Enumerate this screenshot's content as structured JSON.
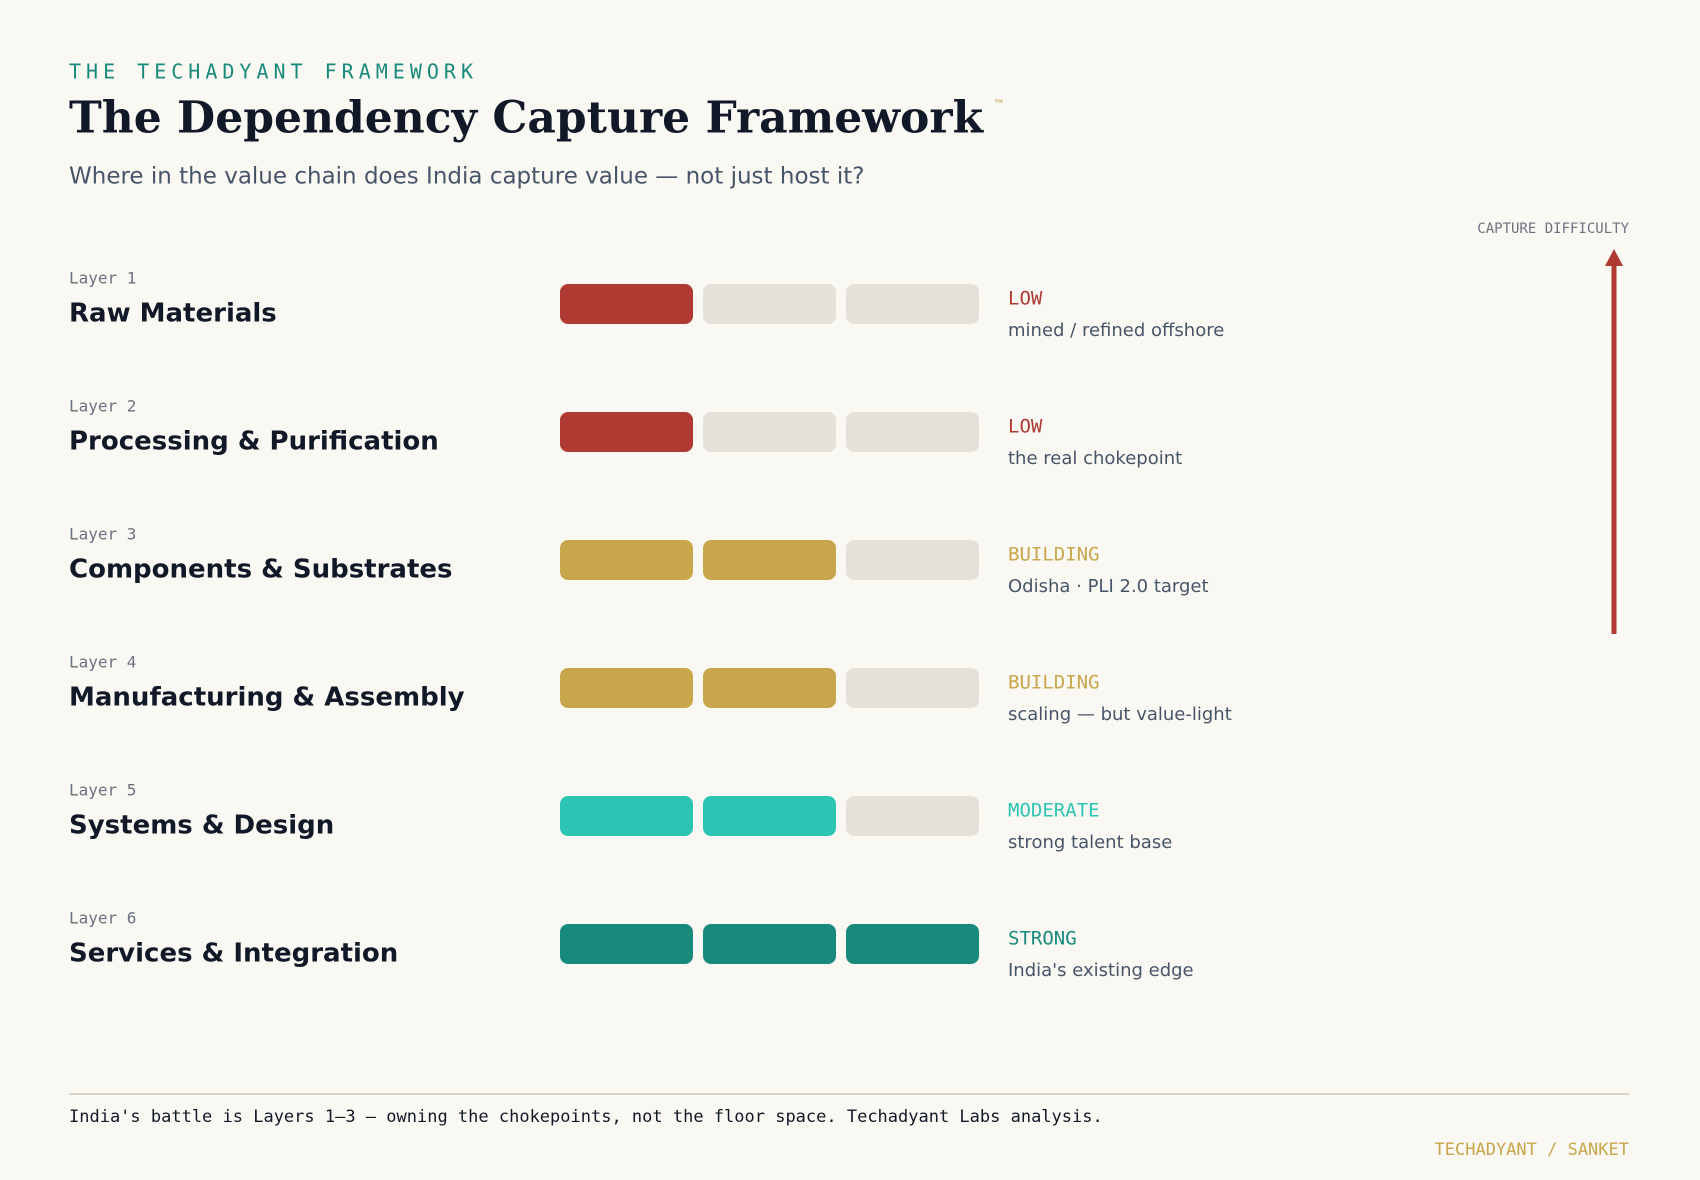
{
  "eyebrow": "THE TECHADYANT FRAMEWORK",
  "title": "The Dependency Capture Framework",
  "trademark": "™",
  "subtitle": "Where in the value chain does India capture value — not just host it?",
  "axis_label": "CAPTURE DIFFICULTY",
  "layers": [
    {
      "layer": "Layer 1",
      "name": "Raw Materials",
      "filled": 1,
      "color": "#b03a32",
      "status": "LOW",
      "note": "mined / refined offshore"
    },
    {
      "layer": "Layer 2",
      "name": "Processing & Purification",
      "filled": 1,
      "color": "#b03a32",
      "status": "LOW",
      "note": "the real chokepoint"
    },
    {
      "layer": "Layer 3",
      "name": "Components & Substrates",
      "filled": 2,
      "color": "#c8a64b",
      "status": "BUILDING",
      "note": "Odisha · PLI 2.0 target"
    },
    {
      "layer": "Layer 4",
      "name": "Manufacturing & Assembly",
      "filled": 2,
      "color": "#c8a64b",
      "status": "BUILDING",
      "note": "scaling — but value-light"
    },
    {
      "layer": "Layer 5",
      "name": "Systems & Design",
      "filled": 2,
      "color": "#2cc4b2",
      "status": "MODERATE",
      "note": "strong talent base"
    },
    {
      "layer": "Layer 6",
      "name": "Services & Integration",
      "filled": 3,
      "color": "#178a7b",
      "status": "STRONG",
      "note": "India's existing edge"
    }
  ],
  "footer_note": "India's battle is Layers 1–3 — owning the chokepoints, not the floor space.  Techadyant Labs analysis.",
  "credit": "TECHADYANT / SANKET"
}
